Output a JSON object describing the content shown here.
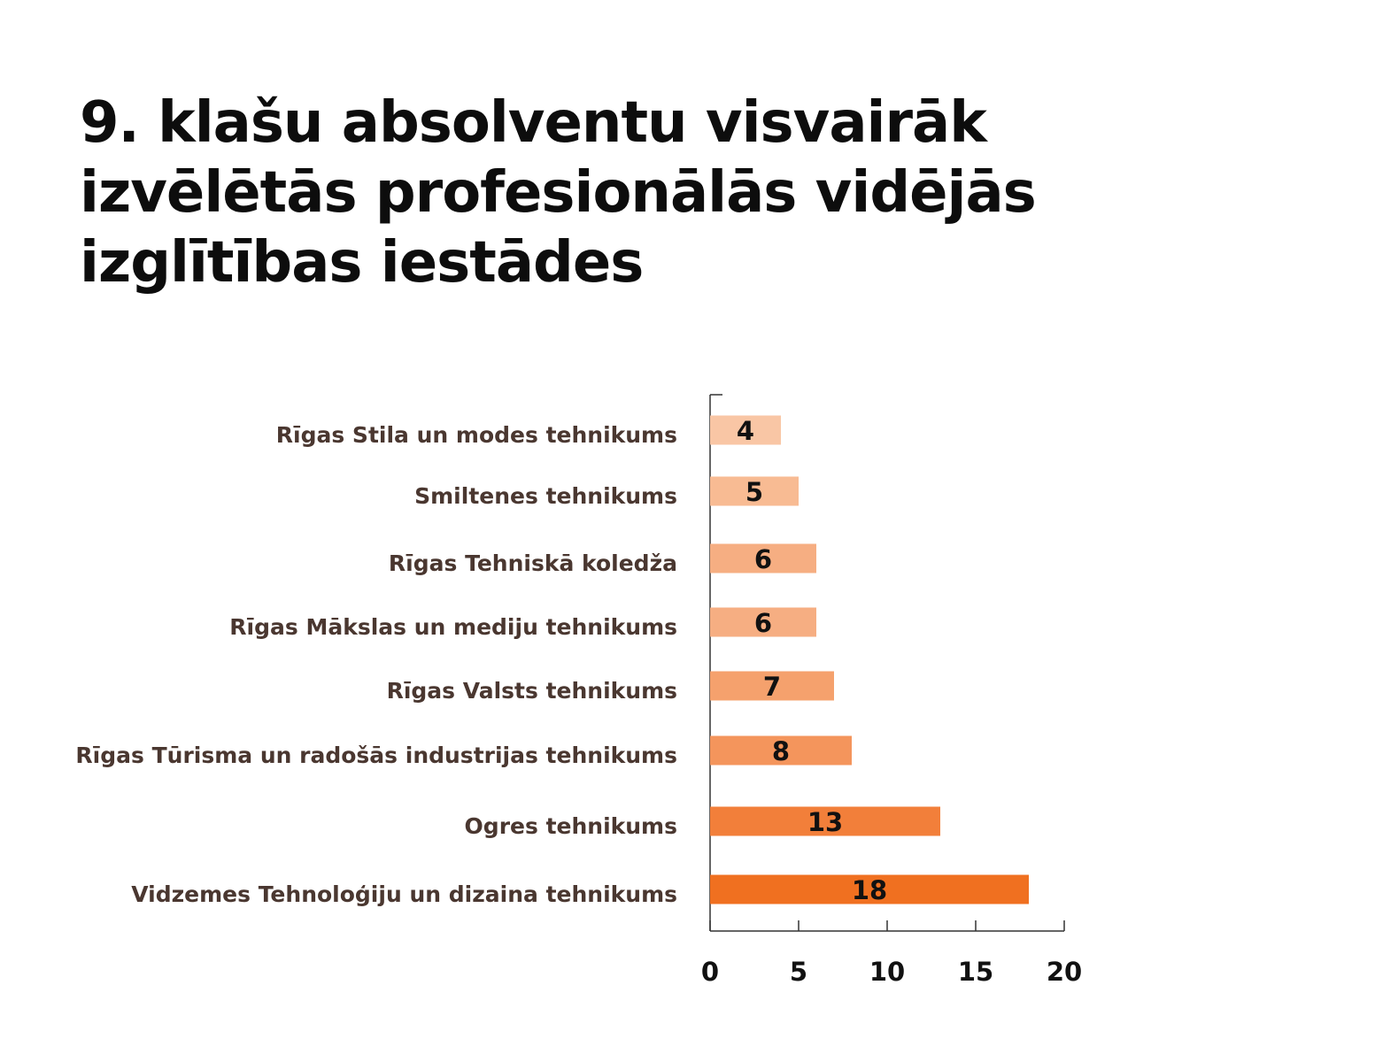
{
  "chart_data": {
    "type": "bar",
    "orientation": "horizontal",
    "title_lines": [
      "9. klašu absolventu visvairāk",
      "izvēlētās profesionālās vidējās",
      "izglītības iestādes"
    ],
    "categories": [
      "Rīgas Stila un modes tehnikums",
      "Smiltenes tehnikums",
      "Rīgas Tehniskā koledža",
      "Rīgas Mākslas un mediju tehnikums",
      "Rīgas Valsts tehnikums",
      "Rīgas Tūrisma un radošās industrijas tehnikums",
      "Ogres tehnikums",
      "Vidzemes Tehnoloģiju un dizaina tehnikums"
    ],
    "values": [
      4,
      5,
      6,
      6,
      7,
      8,
      13,
      18
    ],
    "bar_colors": [
      "#f9c6a5",
      "#f8bb93",
      "#f6ae82",
      "#f6ae82",
      "#f5a16d",
      "#f4955c",
      "#f27f3a",
      "#f07020"
    ],
    "xticks": [
      "0",
      "5",
      "10",
      "15",
      "20"
    ],
    "xlim": [
      0,
      20
    ],
    "xlabel": "",
    "ylabel": "",
    "legend": "none",
    "grid": false
  }
}
